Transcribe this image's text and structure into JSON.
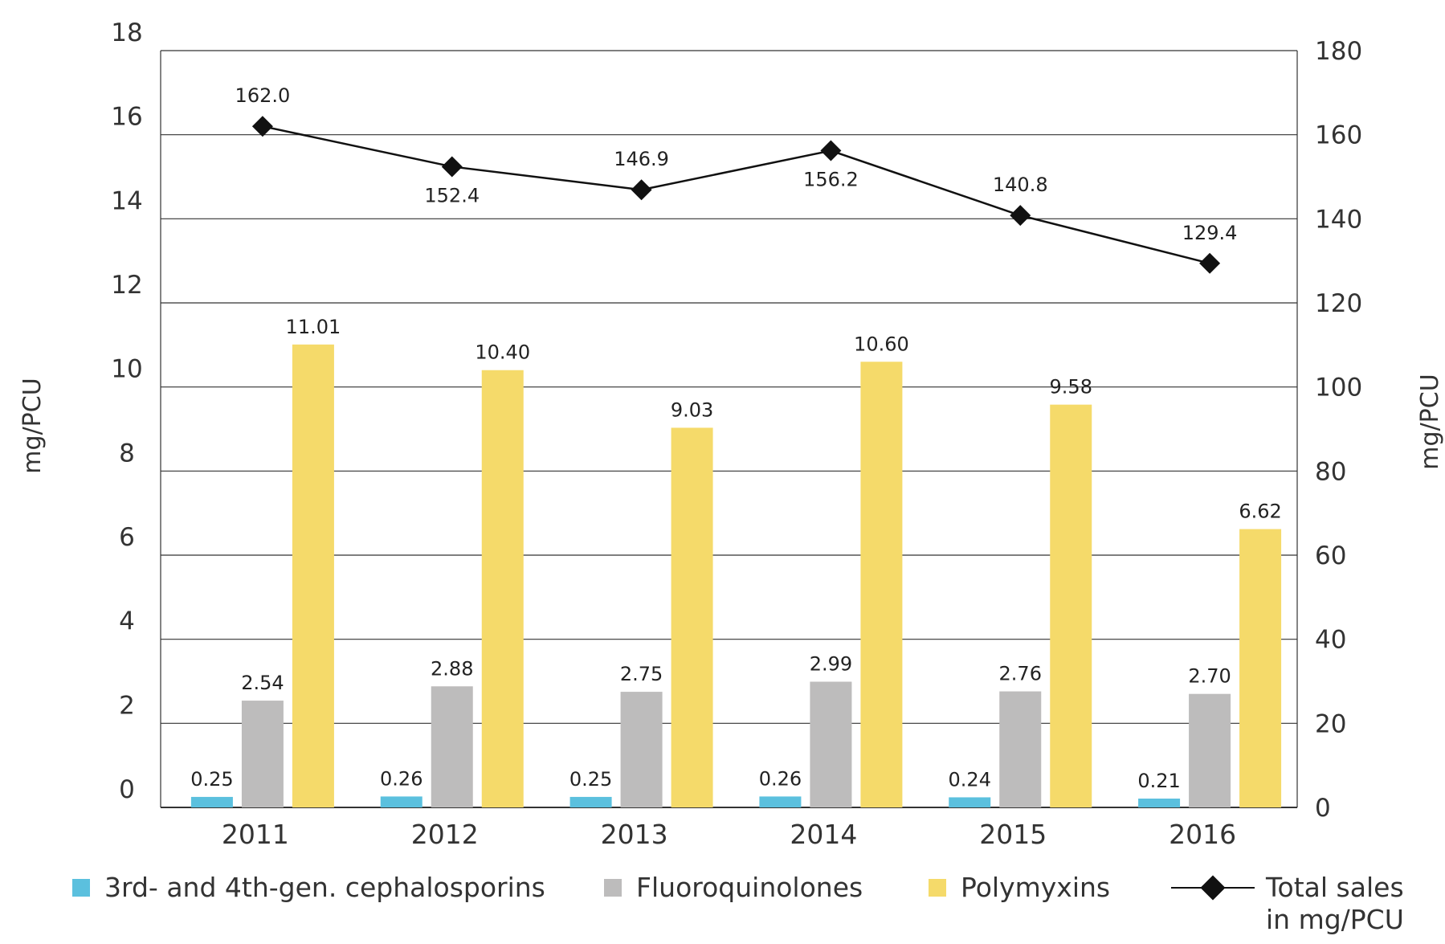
{
  "chart_data": {
    "type": "bar",
    "title": "",
    "categories": [
      "2011",
      "2012",
      "2013",
      "2014",
      "2015",
      "2016"
    ],
    "left_axis": {
      "label": "mg/PCU",
      "range": [
        0,
        18
      ],
      "ticks": [
        "0",
        "2",
        "4",
        "6",
        "8",
        "10",
        "12",
        "14",
        "16",
        "18"
      ]
    },
    "right_axis": {
      "label": "mg/PCU",
      "range": [
        0,
        180
      ],
      "ticks": [
        "0",
        "20",
        "40",
        "60",
        "80",
        "100",
        "120",
        "140",
        "160",
        "180"
      ]
    },
    "series": [
      {
        "name": "3rd- and 4th-gen. cephalosporins",
        "type": "bar",
        "axis": "left",
        "color": "#5bc0de",
        "values": [
          0.25,
          0.26,
          0.25,
          0.26,
          0.24,
          0.21
        ],
        "labels": [
          "0.25",
          "0.26",
          "0.25",
          "0.26",
          "0.24",
          "0.21"
        ]
      },
      {
        "name": "Fluoroquinolones",
        "type": "bar",
        "axis": "left",
        "color": "#bdbcbc",
        "values": [
          2.54,
          2.88,
          2.75,
          2.99,
          2.76,
          2.7
        ],
        "labels": [
          "2.54",
          "2.88",
          "2.75",
          "2.99",
          "2.76",
          "2.70"
        ]
      },
      {
        "name": "Polymyxins",
        "type": "bar",
        "axis": "left",
        "color": "#f5da6a",
        "values": [
          11.01,
          10.4,
          9.03,
          10.6,
          9.58,
          6.62
        ],
        "labels": [
          "11.01",
          "10.40",
          "9.03",
          "10.60",
          "9.58",
          "6.62"
        ]
      },
      {
        "name": "Total sales\nin mg/PCU",
        "type": "line",
        "axis": "right",
        "color": "#111111",
        "values": [
          162.0,
          152.4,
          146.9,
          156.2,
          140.8,
          129.4
        ],
        "labels": [
          "162.0",
          "152.4",
          "146.9",
          "156.2",
          "140.8",
          "129.4"
        ]
      }
    ],
    "grid": true,
    "legend_position": "bottom"
  }
}
